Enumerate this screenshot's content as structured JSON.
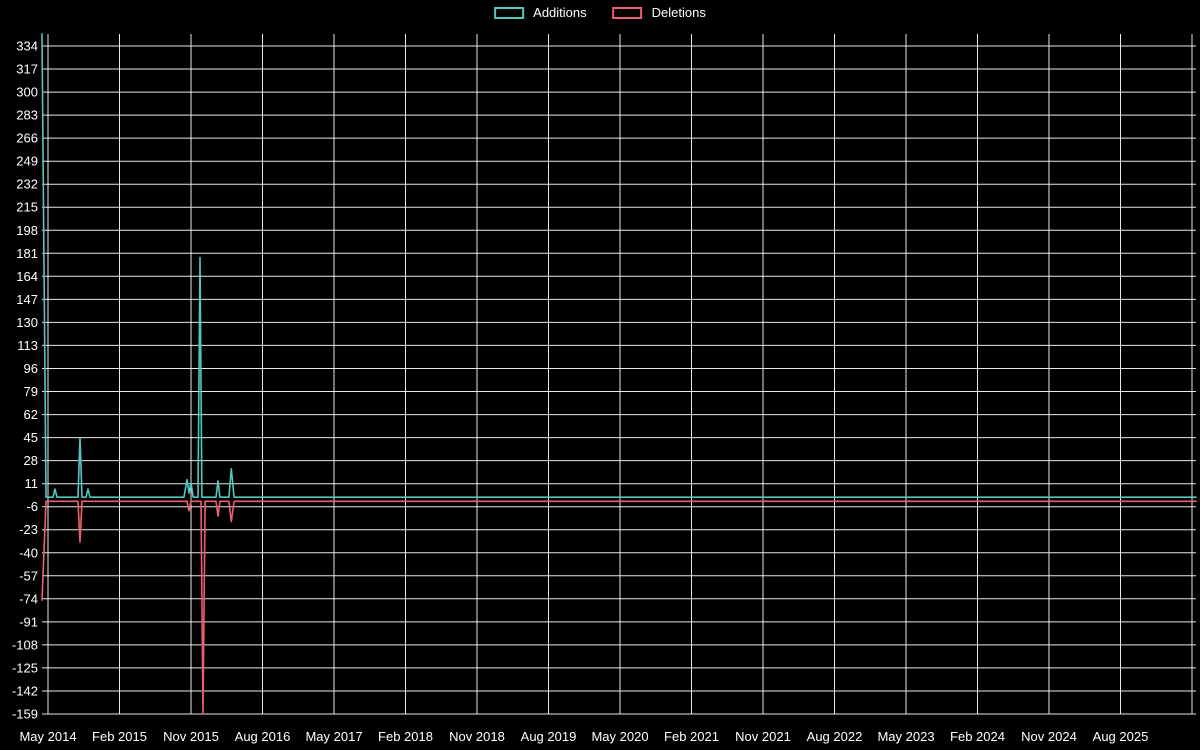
{
  "page": {
    "background": "#000000"
  },
  "chart_data": {
    "type": "line",
    "title": "",
    "legend_position": "top-center",
    "background": "#000000",
    "grid": {
      "show": true,
      "color": "#e8e8e8"
    },
    "text_color": "#ffffff",
    "y_axis": {
      "max": 334,
      "min": -159,
      "tick_step": 17,
      "ticks": [
        334,
        317,
        300,
        283,
        266,
        249,
        232,
        215,
        198,
        181,
        164,
        147,
        130,
        113,
        96,
        79,
        62,
        45,
        28,
        11,
        -6,
        -23,
        -40,
        -57,
        -74,
        -91,
        -108,
        -125,
        -142,
        -159
      ]
    },
    "x_axis": {
      "ticks": [
        "May 2014",
        "Feb 2015",
        "Nov 2015",
        "Aug 2016",
        "May 2017",
        "Feb 2018",
        "Nov 2018",
        "Aug 2019",
        "May 2020",
        "Feb 2021",
        "Nov 2021",
        "Aug 2022",
        "May 2023",
        "Feb 2024",
        "Nov 2024",
        "Aug 2025"
      ]
    },
    "series": [
      {
        "name": "Additions",
        "color": "#54c6c0",
        "points": [
          [
            0.0,
            343
          ],
          [
            0.0035,
            1
          ],
          [
            0.0095,
            1
          ],
          [
            0.0113,
            7
          ],
          [
            0.013,
            1
          ],
          [
            0.0312,
            1
          ],
          [
            0.0329,
            45
          ],
          [
            0.0347,
            1
          ],
          [
            0.0381,
            1
          ],
          [
            0.0399,
            7
          ],
          [
            0.0416,
            1
          ],
          [
            0.123,
            1
          ],
          [
            0.1257,
            14
          ],
          [
            0.1274,
            4
          ],
          [
            0.1291,
            12
          ],
          [
            0.1309,
            1
          ],
          [
            0.1352,
            1
          ],
          [
            0.1369,
            178
          ],
          [
            0.1386,
            1
          ],
          [
            0.1508,
            1
          ],
          [
            0.1525,
            13
          ],
          [
            0.1542,
            1
          ],
          [
            0.162,
            1
          ],
          [
            0.164,
            22
          ],
          [
            0.1665,
            1
          ],
          [
            1.0,
            1
          ]
        ]
      },
      {
        "name": "Deletions",
        "color": "#ec5f6d",
        "points": [
          [
            0.0,
            -75
          ],
          [
            0.0035,
            -2
          ],
          [
            0.0312,
            -2
          ],
          [
            0.0329,
            -32
          ],
          [
            0.0347,
            -2
          ],
          [
            0.1257,
            -2
          ],
          [
            0.1274,
            -9
          ],
          [
            0.1291,
            -2
          ],
          [
            0.1378,
            -2
          ],
          [
            0.1395,
            -159
          ],
          [
            0.1413,
            -2
          ],
          [
            0.1508,
            -2
          ],
          [
            0.1525,
            -13
          ],
          [
            0.1542,
            -2
          ],
          [
            0.162,
            -2
          ],
          [
            0.164,
            -17
          ],
          [
            0.1665,
            -2
          ],
          [
            1.0,
            -2
          ]
        ]
      }
    ]
  }
}
